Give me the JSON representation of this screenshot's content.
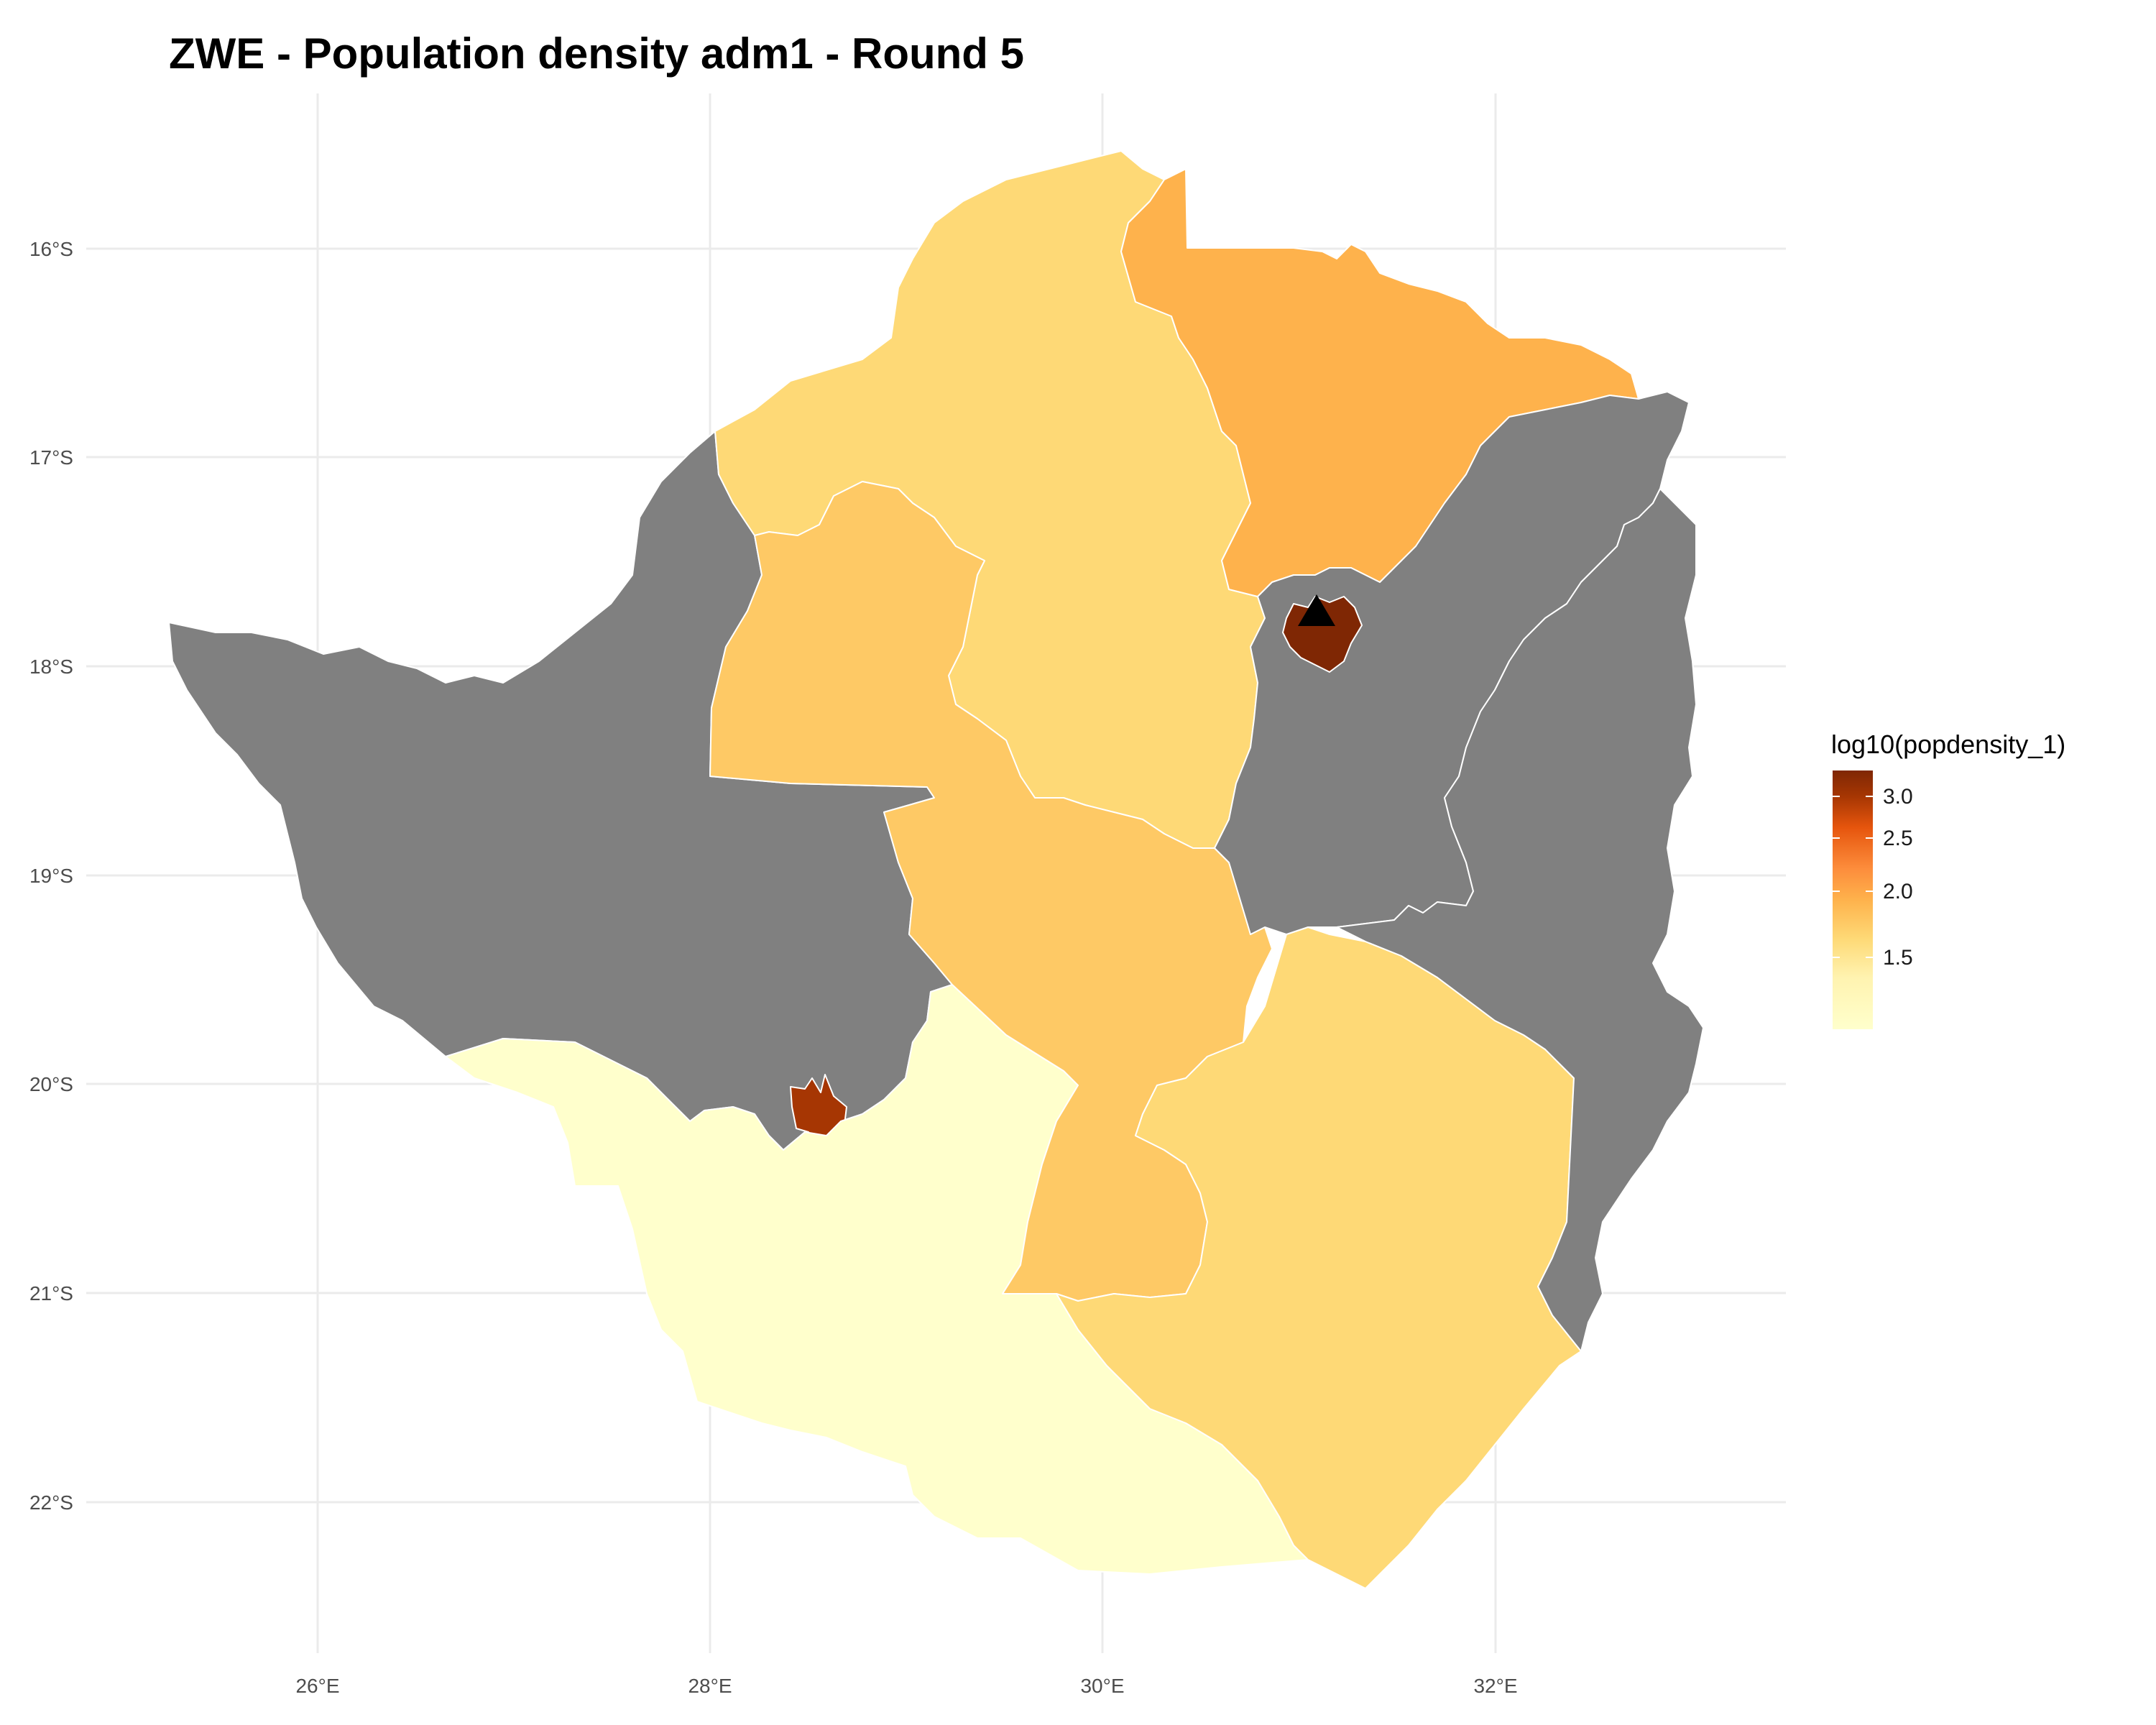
{
  "title": "ZWE - Population density adm1 - Round 5",
  "axes": {
    "x_ticks": [
      "26°E",
      "28°E",
      "30°E",
      "32°E"
    ],
    "y_ticks": [
      "16°S",
      "17°S",
      "18°S",
      "19°S",
      "20°S",
      "21°S",
      "22°S"
    ]
  },
  "legend": {
    "title": "log10(popdensity_1)",
    "breaks": [
      "3.0",
      "2.5",
      "2.0",
      "1.5"
    ],
    "position": "right"
  },
  "colors": {
    "no_data": "#808080",
    "scale_low": "#ffffcc",
    "scale_mid_low": "#fed976",
    "scale_mid": "#feb24c",
    "scale_mid_high": "#fd8d3c",
    "scale_high_1": "#e6550d",
    "scale_high_2": "#a63603",
    "scale_max": "#7f2704",
    "grid": "#ebebeb",
    "boundary": "#ffffff"
  },
  "marker": {
    "type": "triangle",
    "color": "#000000",
    "icon": "capital-triangle-icon"
  }
}
